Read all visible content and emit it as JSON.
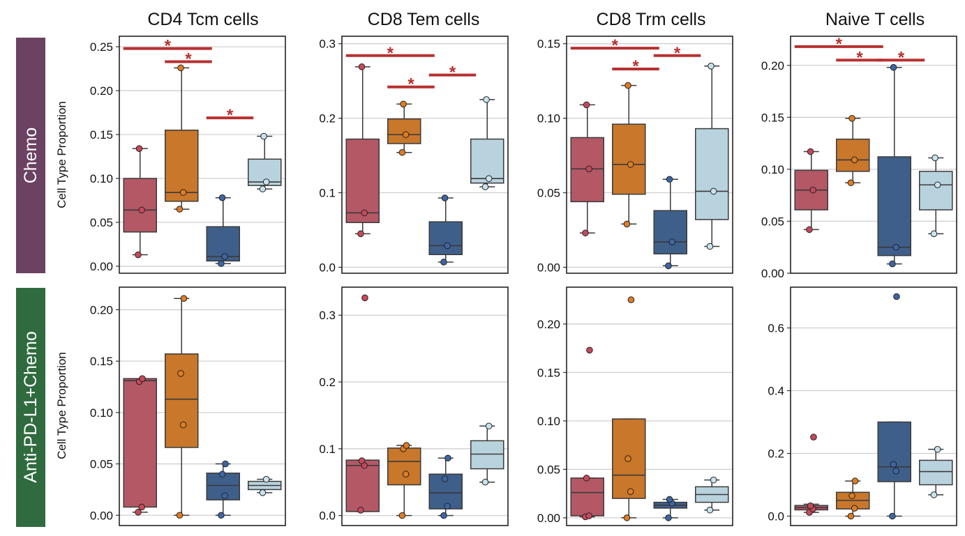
{
  "figure": {
    "columns": [
      "CD4 Tcm cells",
      "CD8 Tem cells",
      "CD8 Trm cells",
      "Naive T cells"
    ],
    "rows": [
      {
        "label": "Chemo",
        "color": "#6b4262"
      },
      {
        "label": "Anti-PD-L1+Chemo",
        "color": "#2f6b3e"
      }
    ],
    "ylabel": "Cell Type Proportion",
    "group_colors": [
      "#b45866",
      "#c8772b",
      "#3f5f8b",
      "#b9d3de"
    ],
    "point_colors": [
      "#c8485a",
      "#e07c22",
      "#3d66a3",
      "#c9e3ef"
    ],
    "sig_color": "#b83030",
    "sig_label": "*"
  },
  "chart_data": [
    {
      "type": "box",
      "row": 0,
      "col": 0,
      "title": "CD4 Tcm cells",
      "ylabel": "Cell Type Proportion",
      "ylim": [
        -0.008,
        0.262
      ],
      "yticks": [
        0.0,
        0.05,
        0.1,
        0.15,
        0.2,
        0.25
      ],
      "ytick_labels": [
        "0.00",
        "0.05",
        "0.10",
        "0.15",
        "0.20",
        "0.25"
      ],
      "boxes": [
        {
          "q1": 0.039,
          "median": 0.064,
          "q3": 0.1,
          "wlo": 0.013,
          "whi": 0.134,
          "points": [
            0.013,
            0.064,
            0.134
          ]
        },
        {
          "q1": 0.074,
          "median": 0.084,
          "q3": 0.155,
          "wlo": 0.065,
          "whi": 0.226,
          "points": [
            0.065,
            0.084,
            0.226
          ]
        },
        {
          "q1": 0.006,
          "median": 0.011,
          "q3": 0.045,
          "wlo": 0.003,
          "whi": 0.078,
          "points": [
            0.003,
            0.011,
            0.078
          ]
        },
        {
          "q1": 0.092,
          "median": 0.096,
          "q3": 0.122,
          "wlo": 0.088,
          "whi": 0.148,
          "points": [
            0.088,
            0.096,
            0.148
          ]
        }
      ],
      "significance": [
        {
          "from": 0,
          "to": 2,
          "y": 0.248
        },
        {
          "from": 1,
          "to": 2,
          "y": 0.233
        },
        {
          "from": 2,
          "to": 3,
          "y": 0.169
        }
      ]
    },
    {
      "type": "box",
      "row": 0,
      "col": 1,
      "title": "CD8 Tem cells",
      "ylabel": "Cell Type Proportion",
      "ylim": [
        -0.008,
        0.31
      ],
      "yticks": [
        0.0,
        0.1,
        0.2,
        0.3
      ],
      "ytick_labels": [
        "0.0",
        "0.1",
        "0.2",
        "0.3"
      ],
      "boxes": [
        {
          "q1": 0.06,
          "median": 0.073,
          "q3": 0.172,
          "wlo": 0.045,
          "whi": 0.269,
          "points": [
            0.045,
            0.073,
            0.269
          ]
        },
        {
          "q1": 0.166,
          "median": 0.178,
          "q3": 0.199,
          "wlo": 0.154,
          "whi": 0.219,
          "points": [
            0.154,
            0.178,
            0.219
          ]
        },
        {
          "q1": 0.017,
          "median": 0.029,
          "q3": 0.061,
          "wlo": 0.007,
          "whi": 0.093,
          "points": [
            0.007,
            0.029,
            0.093
          ]
        },
        {
          "q1": 0.113,
          "median": 0.119,
          "q3": 0.172,
          "wlo": 0.108,
          "whi": 0.225,
          "points": [
            0.108,
            0.119,
            0.225
          ]
        }
      ],
      "significance": [
        {
          "from": 0,
          "to": 2,
          "y": 0.284
        },
        {
          "from": 1,
          "to": 2,
          "y": 0.242
        },
        {
          "from": 2,
          "to": 3,
          "y": 0.258
        }
      ]
    },
    {
      "type": "box",
      "row": 0,
      "col": 2,
      "title": "CD8 Trm cells",
      "ylabel": "Cell Type Proportion",
      "ylim": [
        -0.004,
        0.155
      ],
      "yticks": [
        0.0,
        0.05,
        0.1,
        0.15
      ],
      "ytick_labels": [
        "0.00",
        "0.05",
        "0.10",
        "0.15"
      ],
      "boxes": [
        {
          "q1": 0.044,
          "median": 0.066,
          "q3": 0.087,
          "wlo": 0.023,
          "whi": 0.109,
          "points": [
            0.023,
            0.066,
            0.109
          ]
        },
        {
          "q1": 0.049,
          "median": 0.069,
          "q3": 0.096,
          "wlo": 0.029,
          "whi": 0.122,
          "points": [
            0.029,
            0.069,
            0.122
          ]
        },
        {
          "q1": 0.009,
          "median": 0.017,
          "q3": 0.038,
          "wlo": 0.001,
          "whi": 0.059,
          "points": [
            0.001,
            0.017,
            0.059
          ]
        },
        {
          "q1": 0.032,
          "median": 0.051,
          "q3": 0.093,
          "wlo": 0.014,
          "whi": 0.135,
          "points": [
            0.014,
            0.051,
            0.135
          ]
        }
      ],
      "significance": [
        {
          "from": 0,
          "to": 2,
          "y": 0.147
        },
        {
          "from": 1,
          "to": 2,
          "y": 0.133
        },
        {
          "from": 2,
          "to": 3,
          "y": 0.142
        }
      ]
    },
    {
      "type": "box",
      "row": 0,
      "col": 3,
      "title": "Naive T cells",
      "ylabel": "Cell Type Proportion",
      "ylim": [
        0.0,
        0.228
      ],
      "yticks": [
        0.0,
        0.05,
        0.1,
        0.15,
        0.2
      ],
      "ytick_labels": [
        "0.00",
        "0.05",
        "0.10",
        "0.15",
        "0.20"
      ],
      "boxes": [
        {
          "q1": 0.061,
          "median": 0.08,
          "q3": 0.099,
          "wlo": 0.042,
          "whi": 0.117,
          "points": [
            0.042,
            0.08,
            0.117
          ]
        },
        {
          "q1": 0.098,
          "median": 0.109,
          "q3": 0.129,
          "wlo": 0.087,
          "whi": 0.149,
          "points": [
            0.087,
            0.109,
            0.149
          ]
        },
        {
          "q1": 0.017,
          "median": 0.025,
          "q3": 0.112,
          "wlo": 0.009,
          "whi": 0.198,
          "points": [
            0.009,
            0.025,
            0.198
          ]
        },
        {
          "q1": 0.061,
          "median": 0.085,
          "q3": 0.098,
          "wlo": 0.038,
          "whi": 0.111,
          "points": [
            0.038,
            0.085,
            0.111
          ]
        }
      ],
      "significance": [
        {
          "from": 0,
          "to": 2,
          "y": 0.218
        },
        {
          "from": 1,
          "to": 2,
          "y": 0.205
        },
        {
          "from": 2,
          "to": 3,
          "y": 0.205
        }
      ]
    },
    {
      "type": "box",
      "row": 1,
      "col": 0,
      "title": "CD4 Tcm cells",
      "ylabel": "Cell Type Proportion",
      "ylim": [
        -0.01,
        0.222
      ],
      "yticks": [
        0.0,
        0.05,
        0.1,
        0.15,
        0.2
      ],
      "ytick_labels": [
        "0.00",
        "0.05",
        "0.10",
        "0.15",
        "0.20"
      ],
      "boxes": [
        {
          "q1": 0.008,
          "median": 0.131,
          "q3": 0.133,
          "wlo": 0.003,
          "whi": 0.133,
          "points": [
            0.003,
            0.008,
            0.13,
            0.133
          ]
        },
        {
          "q1": 0.066,
          "median": 0.113,
          "q3": 0.157,
          "wlo": 0.0,
          "whi": 0.211,
          "points": [
            0.0,
            0.088,
            0.138,
            0.211
          ]
        },
        {
          "q1": 0.015,
          "median": 0.029,
          "q3": 0.041,
          "wlo": 0.0,
          "whi": 0.05,
          "points": [
            0.0,
            0.019,
            0.04,
            0.05
          ]
        },
        {
          "q1": 0.025,
          "median": 0.029,
          "q3": 0.033,
          "wlo": 0.022,
          "whi": 0.035,
          "points": [
            0.022,
            0.035
          ]
        }
      ],
      "significance": []
    },
    {
      "type": "box",
      "row": 1,
      "col": 1,
      "title": "CD8 Tem cells",
      "ylabel": "Cell Type Proportion",
      "ylim": [
        -0.015,
        0.342
      ],
      "yticks": [
        0.0,
        0.1,
        0.2,
        0.3
      ],
      "ytick_labels": [
        "0.0",
        "0.1",
        "0.2",
        "0.3"
      ],
      "boxes": [
        {
          "q1": 0.006,
          "median": 0.075,
          "q3": 0.083,
          "wlo": 0.006,
          "whi": 0.083,
          "points": [
            0.008,
            0.075,
            0.082,
            0.326
          ]
        },
        {
          "q1": 0.046,
          "median": 0.081,
          "q3": 0.101,
          "wlo": 0.0,
          "whi": 0.105,
          "points": [
            0.0,
            0.062,
            0.1,
            0.105
          ]
        },
        {
          "q1": 0.01,
          "median": 0.034,
          "q3": 0.062,
          "wlo": 0.0,
          "whi": 0.086,
          "points": [
            0.0,
            0.014,
            0.055,
            0.086
          ]
        },
        {
          "q1": 0.07,
          "median": 0.092,
          "q3": 0.112,
          "wlo": 0.05,
          "whi": 0.134,
          "points": [
            0.05,
            0.134
          ]
        }
      ],
      "significance": []
    },
    {
      "type": "box",
      "row": 1,
      "col": 2,
      "title": "CD8 Trm cells",
      "ylabel": "Cell Type Proportion",
      "ylim": [
        -0.008,
        0.238
      ],
      "yticks": [
        0.0,
        0.05,
        0.1,
        0.15,
        0.2
      ],
      "ytick_labels": [
        "0.00",
        "0.05",
        "0.10",
        "0.15",
        "0.20"
      ],
      "boxes": [
        {
          "q1": 0.002,
          "median": 0.026,
          "q3": 0.041,
          "wlo": 0.001,
          "whi": 0.041,
          "points": [
            0.001,
            0.002,
            0.041,
            0.173
          ]
        },
        {
          "q1": 0.02,
          "median": 0.044,
          "q3": 0.102,
          "wlo": 0.0,
          "whi": 0.102,
          "points": [
            0.0,
            0.027,
            0.061,
            0.225
          ]
        },
        {
          "q1": 0.01,
          "median": 0.013,
          "q3": 0.016,
          "wlo": 0.0,
          "whi": 0.019,
          "points": [
            0.0,
            0.015,
            0.019
          ]
        },
        {
          "q1": 0.016,
          "median": 0.024,
          "q3": 0.032,
          "wlo": 0.008,
          "whi": 0.039,
          "points": [
            0.008,
            0.039
          ]
        }
      ],
      "significance": []
    },
    {
      "type": "box",
      "row": 1,
      "col": 3,
      "title": "Naive T cells",
      "ylabel": "Cell Type Proportion",
      "ylim": [
        -0.03,
        0.73
      ],
      "yticks": [
        0.0,
        0.2,
        0.4,
        0.6
      ],
      "ytick_labels": [
        "0.0",
        "0.2",
        "0.4",
        "0.6"
      ],
      "boxes": [
        {
          "q1": 0.02,
          "median": 0.027,
          "q3": 0.034,
          "wlo": 0.012,
          "whi": 0.038,
          "points": [
            0.012,
            0.023,
            0.033,
            0.252
          ]
        },
        {
          "q1": 0.023,
          "median": 0.05,
          "q3": 0.076,
          "wlo": 0.0,
          "whi": 0.112,
          "points": [
            0.0,
            0.025,
            0.065,
            0.112
          ]
        },
        {
          "q1": 0.11,
          "median": 0.157,
          "q3": 0.3,
          "wlo": 0.0,
          "whi": 0.3,
          "points": [
            0.0,
            0.144,
            0.165,
            0.7
          ]
        },
        {
          "q1": 0.1,
          "median": 0.142,
          "q3": 0.178,
          "wlo": 0.068,
          "whi": 0.213,
          "points": [
            0.068,
            0.213
          ]
        }
      ],
      "significance": []
    }
  ]
}
